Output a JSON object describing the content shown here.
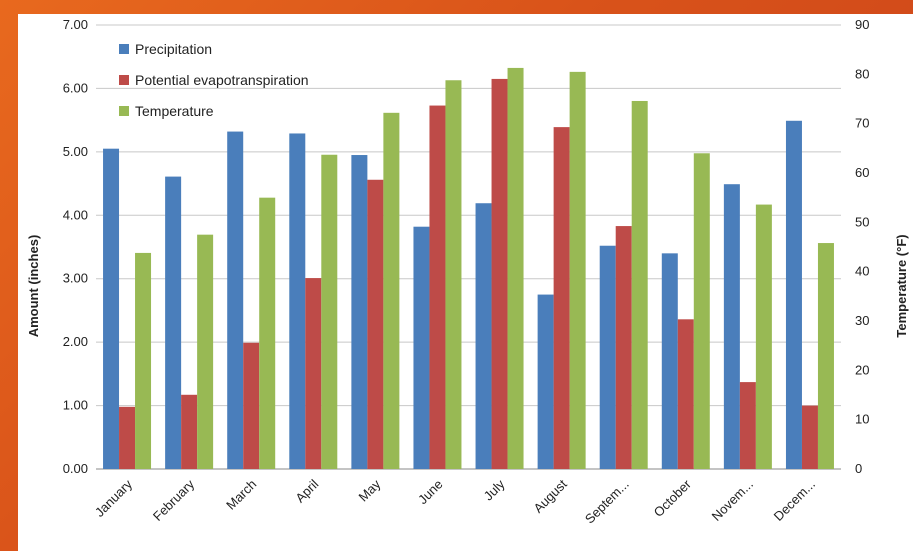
{
  "chart_data": {
    "type": "bar",
    "categories": [
      "January",
      "February",
      "March",
      "April",
      "May",
      "June",
      "July",
      "August",
      "Septem...",
      "October",
      "Novem...",
      "Decem..."
    ],
    "series": [
      {
        "name": "Precipitation",
        "axis": "left",
        "color": "#4a7ebb",
        "values": [
          5.05,
          4.61,
          5.32,
          5.29,
          4.95,
          3.82,
          4.19,
          2.75,
          3.52,
          3.4,
          4.49,
          5.49
        ]
      },
      {
        "name": "Potential evapotranspiration",
        "axis": "left",
        "color": "#be4b48",
        "values": [
          0.98,
          1.17,
          1.99,
          3.01,
          4.56,
          5.73,
          6.15,
          5.39,
          3.83,
          2.36,
          1.37,
          1.0
        ]
      },
      {
        "name": "Temperature",
        "axis": "right",
        "color": "#98b954",
        "values": [
          43.8,
          47.5,
          55.0,
          63.7,
          72.2,
          78.8,
          81.3,
          80.5,
          74.6,
          64.0,
          53.6,
          45.8
        ]
      }
    ],
    "ylabel": "Amount (inches)",
    "y2label": "Temperature (°F)",
    "ylim": [
      0,
      7
    ],
    "y2lim": [
      0,
      90
    ],
    "yticks": [
      "0.00",
      "1.00",
      "2.00",
      "3.00",
      "4.00",
      "5.00",
      "6.00",
      "7.00"
    ],
    "y2ticks": [
      "0",
      "10",
      "20",
      "30",
      "40",
      "50",
      "60",
      "70",
      "80",
      "90"
    ],
    "grid": true,
    "legend": "top-left"
  }
}
